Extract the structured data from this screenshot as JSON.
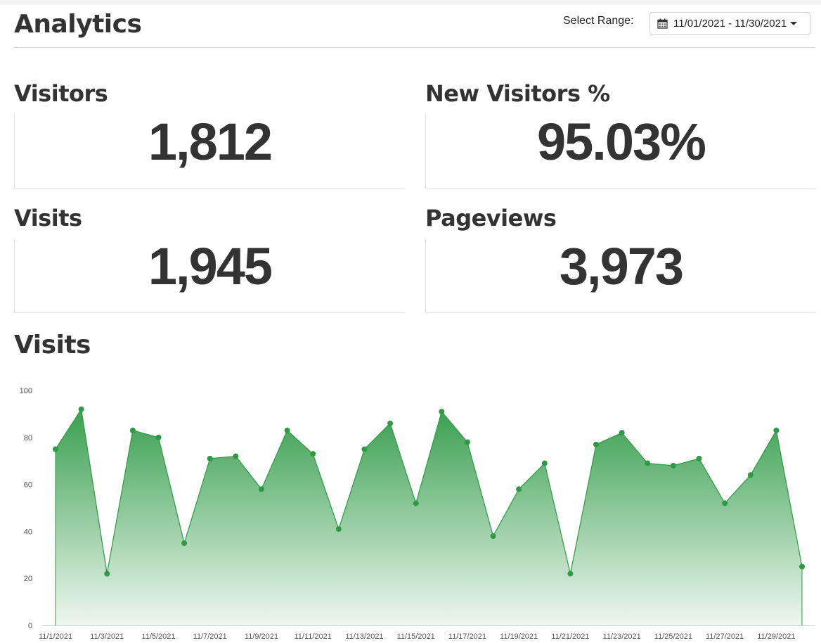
{
  "header": {
    "title": "Analytics",
    "range_label": "Select Range:",
    "range_value": "11/01/2021 - 11/30/2021",
    "calendar_icon": "calendar-icon",
    "caret_icon": "chevron-down-icon"
  },
  "stats": {
    "visitors": {
      "label": "Visitors",
      "value": "1,812"
    },
    "new_visitors": {
      "label": "New Visitors %",
      "value": "95.03%"
    },
    "visits": {
      "label": "Visits",
      "value": "1,945"
    },
    "pageviews": {
      "label": "Pageviews",
      "value": "3,973"
    }
  },
  "chart_section": {
    "title": "Visits"
  },
  "colors": {
    "series": "#2e9a45",
    "text": "#333333"
  },
  "chart_data": {
    "type": "area",
    "ylim": [
      0,
      100
    ],
    "y_ticks": [
      "0",
      "20",
      "40",
      "60",
      "80",
      "100"
    ],
    "x": [
      "11/1/2021",
      "11/2/2021",
      "11/3/2021",
      "11/4/2021",
      "11/5/2021",
      "11/6/2021",
      "11/7/2021",
      "11/8/2021",
      "11/9/2021",
      "11/10/2021",
      "11/11/2021",
      "11/12/2021",
      "11/13/2021",
      "11/14/2021",
      "11/15/2021",
      "11/16/2021",
      "11/17/2021",
      "11/18/2021",
      "11/19/2021",
      "11/20/2021",
      "11/21/2021",
      "11/22/2021",
      "11/23/2021",
      "11/24/2021",
      "11/25/2021",
      "11/26/2021",
      "11/27/2021",
      "11/28/2021",
      "11/29/2021",
      "11/30/2021"
    ],
    "x_tick_labels": [
      "11/1/2021",
      "11/3/2021",
      "11/5/2021",
      "11/7/2021",
      "11/9/2021",
      "11/11/2021",
      "11/13/2021",
      "11/15/2021",
      "11/17/2021",
      "11/19/2021",
      "11/21/2021",
      "11/23/2021",
      "11/25/2021",
      "11/27/2021",
      "11/29/2021"
    ],
    "series": [
      {
        "values": [
          75,
          92,
          22,
          83,
          80,
          35,
          71,
          72,
          58,
          83,
          73,
          41,
          75,
          86,
          52,
          91,
          78,
          38,
          58,
          69,
          22,
          77,
          82,
          69,
          68,
          71,
          52,
          64,
          83,
          25
        ]
      }
    ],
    "grid": false
  }
}
